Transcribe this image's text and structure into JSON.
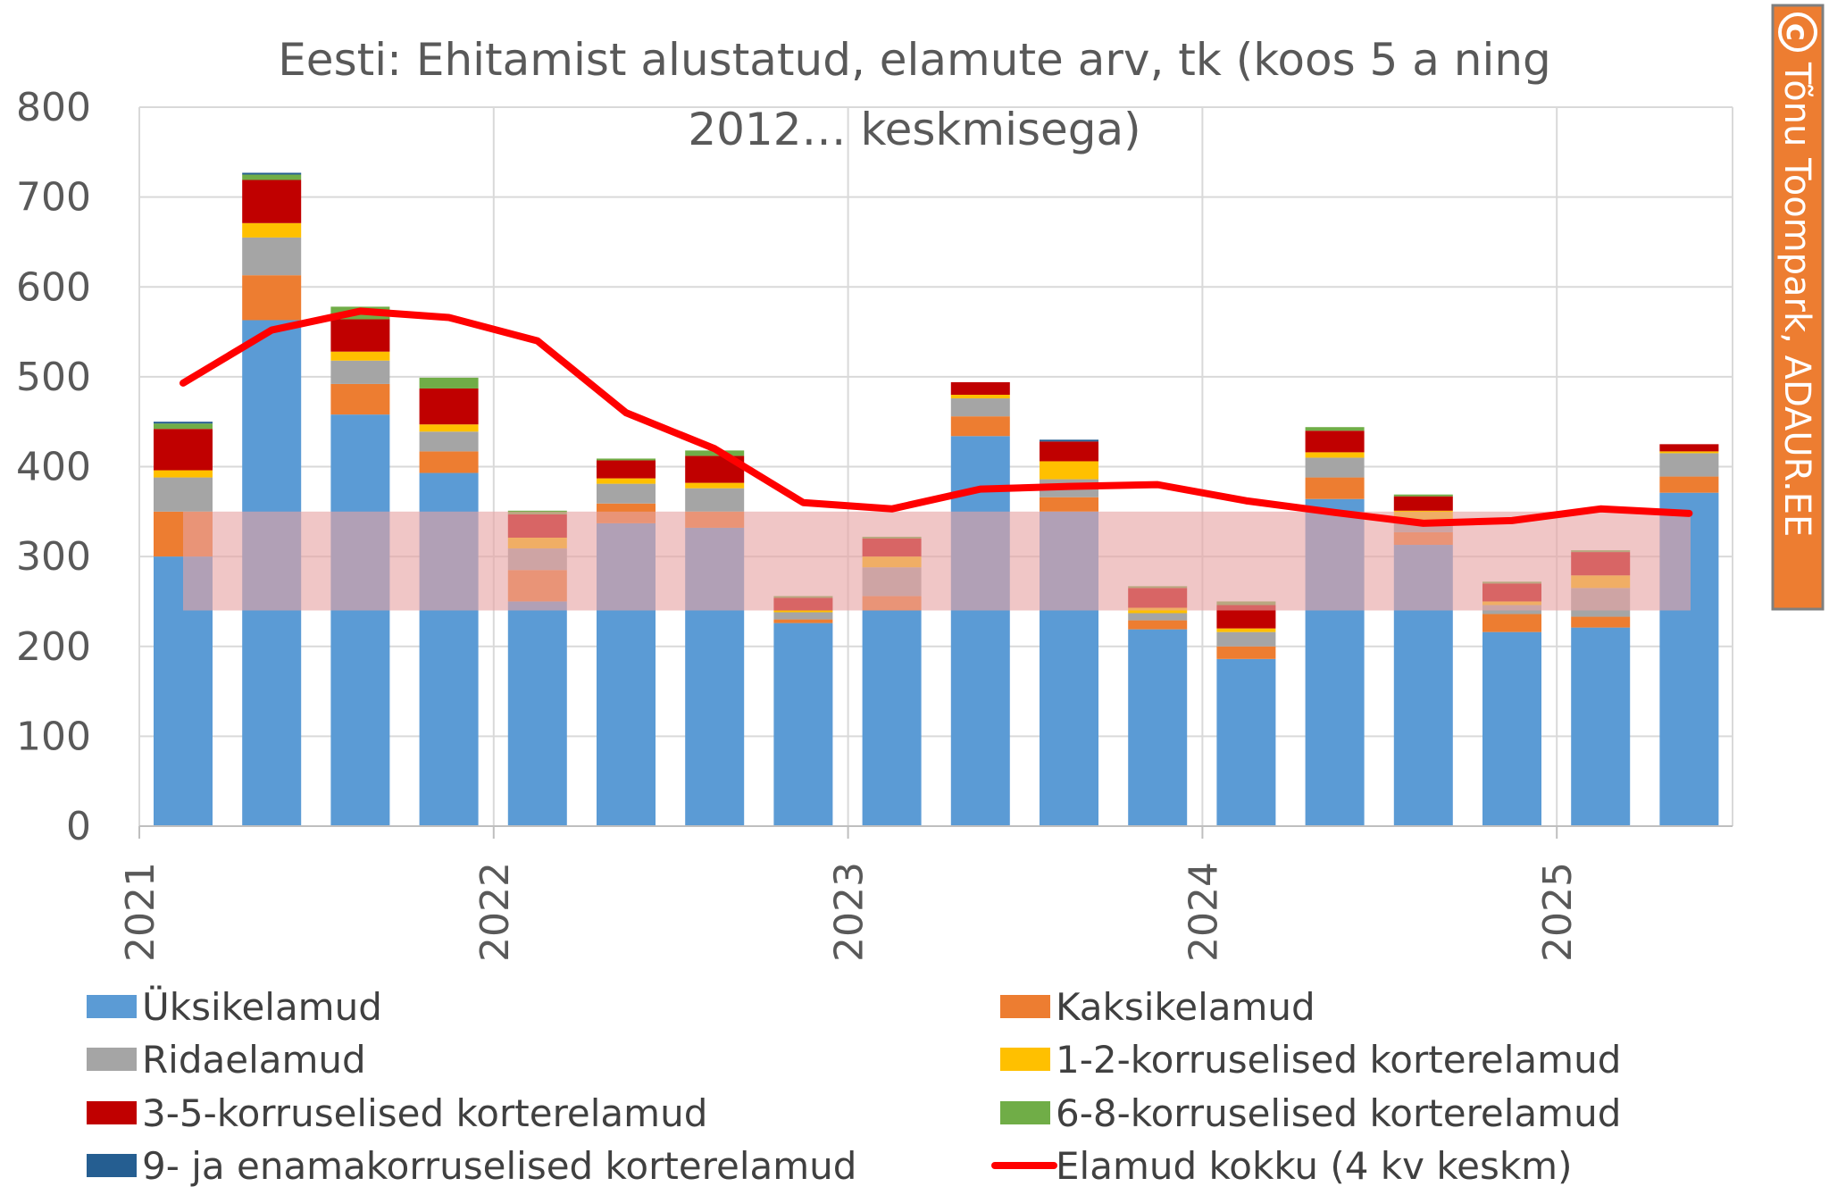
{
  "chart_data": {
    "type": "bar",
    "stacked": true,
    "title": "Eesti: Ehitamist alustatud, elamute arv, tk (koos 5 a ning 2012… keskmisega)",
    "title_lines": [
      "Eesti: Ehitamist alustatud, elamute arv, tk (koos 5 a ning",
      "2012… keskmisega)"
    ],
    "ylim": [
      0,
      800
    ],
    "yticks": [
      "0",
      "100",
      "200",
      "300",
      "400",
      "500",
      "600",
      "700",
      "800"
    ],
    "year_labels": [
      "2021",
      "2022",
      "2023",
      "2024",
      "2025"
    ],
    "grid": true,
    "legend_position": "bottom",
    "categories": [
      "2021 Q1",
      "2021 Q2",
      "2021 Q3",
      "2021 Q4",
      "2022 Q1",
      "2022 Q2",
      "2022 Q3",
      "2022 Q4",
      "2023 Q1",
      "2023 Q2",
      "2023 Q3",
      "2023 Q4",
      "2024 Q1",
      "2024 Q2",
      "2024 Q3",
      "2024 Q4",
      "2025 Q1",
      "2025 Q2"
    ],
    "series": [
      {
        "name": "Üksikelamud",
        "color": "#5b9bd5",
        "values": [
          300,
          563,
          458,
          393,
          250,
          337,
          332,
          226,
          240,
          434,
          350,
          219,
          186,
          364,
          313,
          216,
          221,
          371
        ]
      },
      {
        "name": "Kaksikelamud",
        "color": "#ed7d31",
        "values": [
          50,
          50,
          34,
          24,
          35,
          22,
          18,
          4,
          16,
          22,
          16,
          10,
          14,
          24,
          14,
          20,
          12,
          18
        ]
      },
      {
        "name": "Ridaelamud",
        "color": "#a5a5a5",
        "values": [
          38,
          42,
          26,
          22,
          24,
          22,
          26,
          8,
          32,
          20,
          20,
          8,
          16,
          22,
          14,
          10,
          32,
          26
        ]
      },
      {
        "name": "1-2-korruselised korterelamud",
        "color": "#ffc000",
        "values": [
          8,
          16,
          10,
          8,
          12,
          6,
          6,
          2,
          12,
          4,
          20,
          6,
          4,
          6,
          10,
          4,
          14,
          2
        ]
      },
      {
        "name": "3-5-korruselised korterelamud",
        "color": "#c00000",
        "values": [
          46,
          48,
          36,
          40,
          26,
          20,
          30,
          14,
          20,
          14,
          22,
          22,
          26,
          24,
          16,
          20,
          26,
          8
        ]
      },
      {
        "name": "6-8-korruselised korterelamud",
        "color": "#70ad47",
        "values": [
          6,
          6,
          14,
          12,
          4,
          2,
          6,
          2,
          2,
          0,
          0,
          2,
          4,
          4,
          2,
          2,
          2,
          0
        ]
      },
      {
        "name": "9- ja enamakorruselised korterelamud",
        "color": "#255e91",
        "values": [
          2,
          2,
          0,
          0,
          0,
          0,
          0,
          0,
          0,
          0,
          2,
          0,
          0,
          0,
          0,
          0,
          0,
          0
        ]
      }
    ],
    "line": {
      "name": "Elamud kokku (4 kv keskm)",
      "color": "#ff0000",
      "values": [
        493,
        552,
        573,
        566,
        540,
        460,
        420,
        360,
        353,
        375,
        378,
        380,
        362,
        349,
        337,
        340,
        353,
        348
      ]
    },
    "band": {
      "range": [
        240,
        350
      ],
      "color": "#e7a3a3"
    }
  },
  "watermark": {
    "symbol": "c",
    "text": "Tõnu Toompark, ADAUR.EE",
    "color": "#ed7d31"
  }
}
